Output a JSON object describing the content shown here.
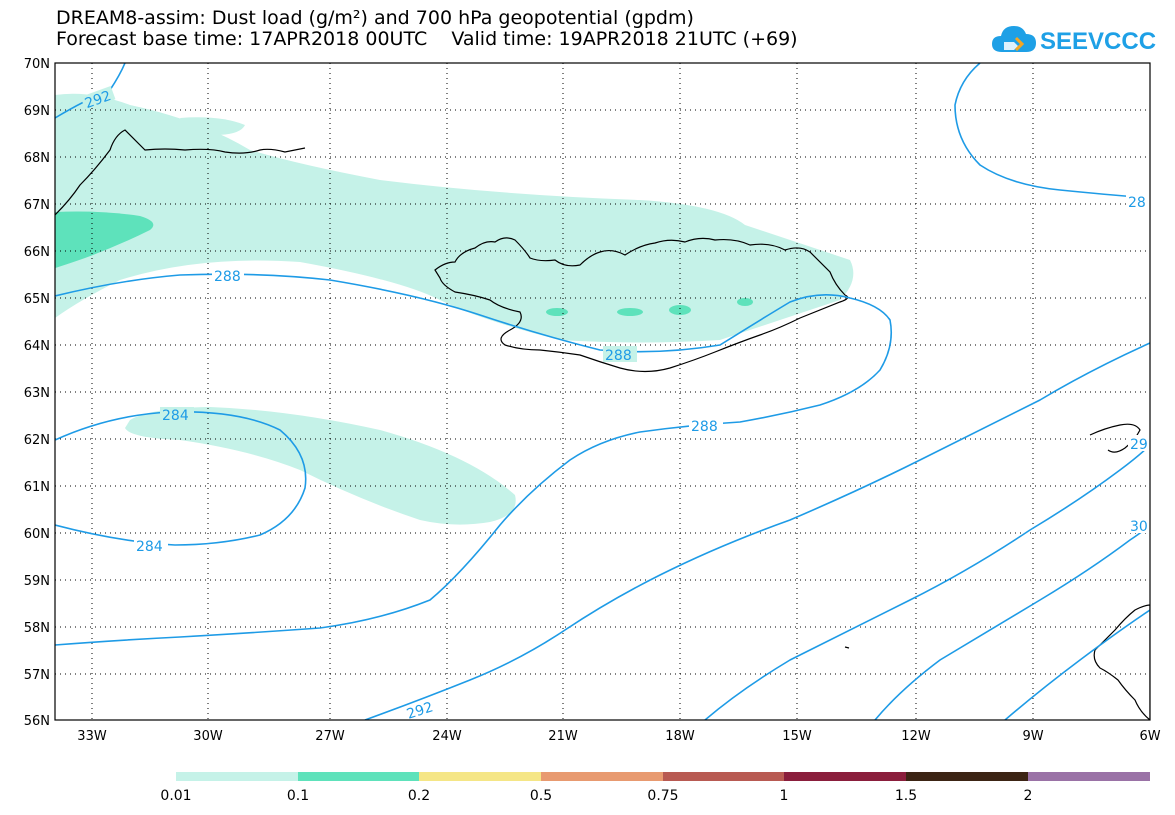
{
  "header": {
    "title_line1": "DREAM8-assim: Dust load (g/m²) and 700 hPa geopotential (gpdm)",
    "title_line2": "Forecast base time: 17APR2018 00UTC    Valid time: 19APR2018 21UTC (+69)"
  },
  "logo": {
    "text": "SEEVCCC",
    "icon": "cloud-icon",
    "color": "#1ea0e6"
  },
  "map": {
    "lat_labels": [
      "70N",
      "69N",
      "68N",
      "67N",
      "66N",
      "65N",
      "64N",
      "63N",
      "62N",
      "61N",
      "60N",
      "59N",
      "58N",
      "57N",
      "56N"
    ],
    "lon_labels": [
      "33W",
      "30W",
      "27W",
      "24W",
      "21W",
      "18W",
      "15W",
      "12W",
      "9W",
      "6W"
    ],
    "contour_labels": [
      "292",
      "288",
      "288",
      "288",
      "284",
      "284",
      "292",
      "28",
      "29",
      "30"
    ],
    "contour_color": "#1e9be6",
    "dust_colors": {
      "light": "#c5f2e8",
      "medium": "#5ee2bb"
    }
  },
  "colorbar": {
    "colors": [
      "#c5f2e8",
      "#5ee2bb",
      "#f5e686",
      "#e89a70",
      "#b85a52",
      "#8a1e3c",
      "#3c2414",
      "#9a72a6"
    ],
    "labels": [
      "0.01",
      "0.1",
      "0.2",
      "0.5",
      "0.75",
      "1",
      "1.5",
      "2"
    ]
  }
}
